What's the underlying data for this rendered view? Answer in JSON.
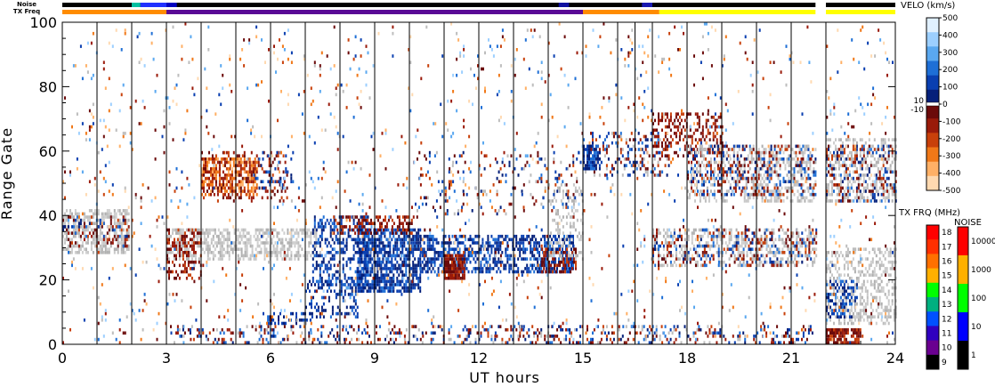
{
  "chart_data": {
    "type": "heatmap",
    "xlabel": "UT hours",
    "ylabel": "Range Gate",
    "xlim": [
      0,
      24
    ],
    "ylim": [
      0,
      100
    ],
    "x_ticks": [
      "0",
      "3",
      "6",
      "9",
      "12",
      "15",
      "18",
      "21",
      "24"
    ],
    "y_ticks": [
      "0",
      "20",
      "40",
      "60",
      "80",
      "100"
    ],
    "scan_boundaries_hours": [
      1.0,
      2.0,
      3.0,
      4.0,
      5.0,
      6.0,
      7.0,
      8.0,
      9.0,
      10.0,
      11.0,
      12.0,
      13.0,
      14.0,
      15.0,
      16.0,
      16.5,
      17.0,
      18.0,
      19.0,
      20.0,
      21.0,
      22.0
    ],
    "velocity_colorbar": {
      "title": "VELO (km/s)",
      "ticks": [
        "500",
        "400",
        "300",
        "200",
        "100",
        "0",
        "-100",
        "-200",
        "-300",
        "-400",
        "-500"
      ],
      "ground_scatter_labels": [
        "10",
        "-10"
      ],
      "colors": [
        "#e0f0ff",
        "#9ccfff",
        "#5aa8f0",
        "#1e6fd6",
        "#0a3fb0",
        "#05207a",
        "#6b0a0a",
        "#9a1a0a",
        "#c8400a",
        "#f07818",
        "#ffb066",
        "#ffd9b0"
      ]
    },
    "tx_freq_scale": {
      "title": "TX FRQ (MHz)",
      "ticks": [
        "18",
        "17",
        "16",
        "15",
        "14",
        "13",
        "12",
        "11",
        "10",
        "9"
      ],
      "colors": [
        "#ff0000",
        "#ff3000",
        "#ff7000",
        "#ffb000",
        "#00ff00",
        "#00b080",
        "#0050ff",
        "#3000c0",
        "#6a0090",
        "#000000"
      ]
    },
    "noise_scale": {
      "title": "NOISE",
      "ticks": [
        "10000",
        "1000",
        "100",
        "10",
        "1"
      ],
      "colors": [
        "#ff0000",
        "#ffb000",
        "#00ff00",
        "#0000ff",
        "#000000"
      ]
    },
    "noise_bar_label": "Noise",
    "txfreq_bar_label": "TX Freq",
    "txfreq_segments": [
      {
        "start": 0.0,
        "end": 3.0,
        "color": "#ff8c00"
      },
      {
        "start": 3.0,
        "end": 15.0,
        "color": "#5a0a96"
      },
      {
        "start": 15.0,
        "end": 17.2,
        "color": "#ff8c00"
      },
      {
        "start": 17.2,
        "end": 21.7,
        "color": "#ffff00"
      },
      {
        "start": 22.0,
        "end": 24.0,
        "color": "#ffff00"
      }
    ],
    "data_gap_hours": [
      21.7,
      22.0
    ],
    "echo_regions": [
      {
        "t0": 0.0,
        "t1": 1.9,
        "g0": 28,
        "g1": 42,
        "kind": "ground",
        "density": 0.55
      },
      {
        "t0": 0.0,
        "t1": 1.9,
        "g0": 30,
        "g1": 40,
        "kind": "neg_slow",
        "density": 0.18
      },
      {
        "t0": 0.0,
        "t1": 1.9,
        "g0": 33,
        "g1": 39,
        "kind": "pos_slow",
        "density": 0.15
      },
      {
        "t0": 3.0,
        "t1": 7.3,
        "g0": 26,
        "g1": 36,
        "kind": "ground",
        "density": 0.55
      },
      {
        "t0": 3.0,
        "t1": 4.0,
        "g0": 20,
        "g1": 36,
        "kind": "neg_slow",
        "density": 0.35
      },
      {
        "t0": 4.0,
        "t1": 5.6,
        "g0": 46,
        "g1": 58,
        "kind": "neg_fast",
        "density": 0.6
      },
      {
        "t0": 4.0,
        "t1": 6.5,
        "g0": 44,
        "g1": 60,
        "kind": "neg_slow",
        "density": 0.18
      },
      {
        "t0": 5.5,
        "t1": 6.7,
        "g0": 48,
        "g1": 60,
        "kind": "pos_slow",
        "density": 0.12
      },
      {
        "t0": 7.2,
        "t1": 8.8,
        "g0": 18,
        "g1": 40,
        "kind": "pos_slow",
        "density": 0.35
      },
      {
        "t0": 7.0,
        "t1": 8.5,
        "g0": 8,
        "g1": 20,
        "kind": "pos_slow",
        "density": 0.3
      },
      {
        "t0": 5.9,
        "t1": 7.2,
        "g0": 6,
        "g1": 10,
        "kind": "pos_slow",
        "density": 0.35
      },
      {
        "t0": 8.5,
        "t1": 10.3,
        "g0": 16,
        "g1": 36,
        "kind": "pos_slow",
        "density": 0.7
      },
      {
        "t0": 7.8,
        "t1": 10.2,
        "g0": 34,
        "g1": 40,
        "kind": "neg_slow",
        "density": 0.4
      },
      {
        "t0": 10.3,
        "t1": 14.7,
        "g0": 22,
        "g1": 34,
        "kind": "pos_slow",
        "density": 0.55
      },
      {
        "t0": 11.0,
        "t1": 11.6,
        "g0": 20,
        "g1": 28,
        "kind": "neg_slow",
        "density": 0.9
      },
      {
        "t0": 13.8,
        "t1": 14.8,
        "g0": 22,
        "g1": 30,
        "kind": "neg_slow",
        "density": 0.5
      },
      {
        "t0": 14.0,
        "t1": 15.0,
        "g0": 26,
        "g1": 50,
        "kind": "ground",
        "density": 0.25
      },
      {
        "t0": 10.0,
        "t1": 15.0,
        "g0": 40,
        "g1": 60,
        "kind": "mixed",
        "density": 0.08
      },
      {
        "t0": 15.0,
        "t1": 17.5,
        "g0": 52,
        "g1": 66,
        "kind": "mixed",
        "density": 0.25
      },
      {
        "t0": 15.0,
        "t1": 15.5,
        "g0": 54,
        "g1": 62,
        "kind": "pos_slow",
        "density": 0.7
      },
      {
        "t0": 17.0,
        "t1": 19.0,
        "g0": 58,
        "g1": 72,
        "kind": "neg_slow",
        "density": 0.35
      },
      {
        "t0": 18.0,
        "t1": 21.7,
        "g0": 44,
        "g1": 62,
        "kind": "ground",
        "density": 0.3
      },
      {
        "t0": 18.0,
        "t1": 21.7,
        "g0": 46,
        "g1": 62,
        "kind": "mixed",
        "density": 0.3
      },
      {
        "t0": 17.0,
        "t1": 21.7,
        "g0": 24,
        "g1": 36,
        "kind": "ground",
        "density": 0.3
      },
      {
        "t0": 17.0,
        "t1": 21.7,
        "g0": 24,
        "g1": 36,
        "kind": "mixed",
        "density": 0.25
      },
      {
        "t0": 22.0,
        "t1": 24.0,
        "g0": 44,
        "g1": 64,
        "kind": "ground",
        "density": 0.35
      },
      {
        "t0": 22.0,
        "t1": 24.0,
        "g0": 44,
        "g1": 62,
        "kind": "mixed",
        "density": 0.3
      },
      {
        "t0": 22.0,
        "t1": 24.0,
        "g0": 6,
        "g1": 30,
        "kind": "ground",
        "density": 0.4
      },
      {
        "t0": 22.0,
        "t1": 22.9,
        "g0": 8,
        "g1": 20,
        "kind": "pos_slow",
        "density": 0.35
      },
      {
        "t0": 22.0,
        "t1": 23.0,
        "g0": 0,
        "g1": 5,
        "kind": "neg_slow",
        "density": 0.8
      },
      {
        "t0": 3.0,
        "t1": 21.7,
        "g0": 0,
        "g1": 6,
        "kind": "mixed",
        "density": 0.22
      },
      {
        "t0": 0.0,
        "t1": 24.0,
        "g0": 0,
        "g1": 100,
        "kind": "noise",
        "density": 0.028
      }
    ]
  }
}
